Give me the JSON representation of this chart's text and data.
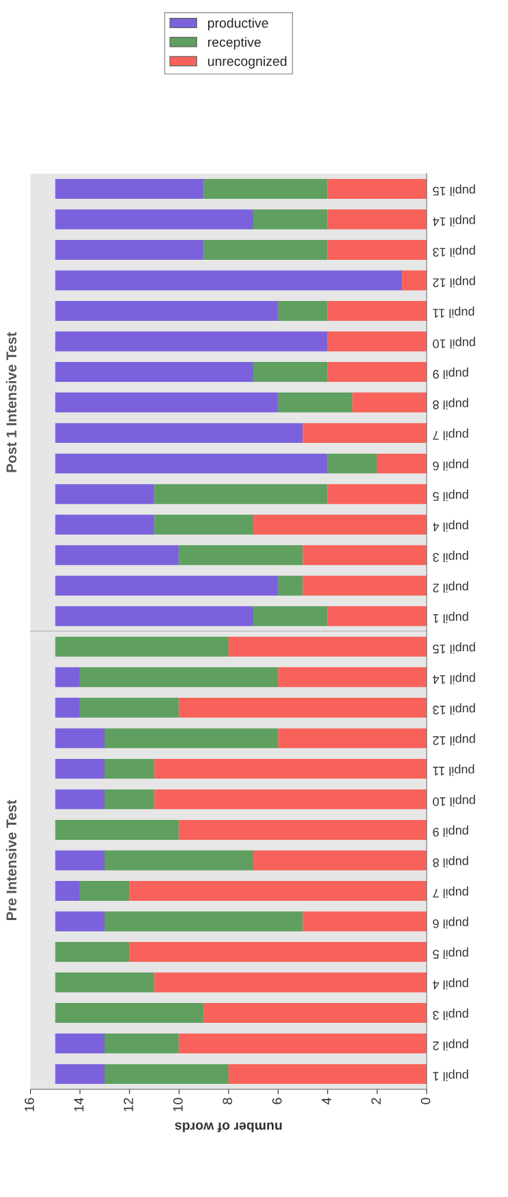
{
  "chart_data": [
    {
      "type": "bar",
      "title": "Post 1 Intensive Test",
      "orientation": "horizontal",
      "stacked": true,
      "legend": "top",
      "grid": false,
      "tick_labels": "y",
      "categories": [
        "pupil 15",
        "pupil 14",
        "pupil 13",
        "pupil 12",
        "pupil 11",
        "pupil 10",
        "pupil 9",
        "pupil 8",
        "pupil 7",
        "pupil 6",
        "pupil 5",
        "pupil 4",
        "pupil 3",
        "pupil 2",
        "pupil 1"
      ],
      "xlim": [
        16,
        0
      ],
      "xticks": [
        0,
        2,
        4,
        6,
        8,
        10,
        12,
        14,
        16
      ],
      "series": [
        {
          "name": "unrecognized",
          "color": "#f8625a",
          "values": [
            4,
            4,
            4,
            1,
            4,
            4,
            4,
            3,
            5,
            2,
            4,
            7,
            5,
            5,
            4
          ]
        },
        {
          "name": "receptive",
          "color": "#5f9f5f",
          "values": [
            5,
            3,
            5,
            0,
            2,
            0,
            3,
            3,
            0,
            2,
            7,
            4,
            5,
            1,
            3
          ]
        },
        {
          "name": "productive",
          "color": "#7b62dc",
          "values": [
            6,
            8,
            6,
            14,
            9,
            11,
            8,
            9,
            10,
            11,
            4,
            4,
            5,
            9,
            8
          ]
        }
      ]
    },
    {
      "type": "bar",
      "title": "Pre Intensive Test",
      "orientation": "horizontal",
      "stacked": true,
      "grid": false,
      "xlabel": "number of words",
      "categories": [
        "pupil 15",
        "pupil 14",
        "pupil 13",
        "pupil 12",
        "pupil 11",
        "pupil 10",
        "pupil 9",
        "pupil 8",
        "pupil 7",
        "pupil 6",
        "pupil 5",
        "pupil 4",
        "pupil 3",
        "pupil 2",
        "pupil 1"
      ],
      "xlim": [
        16,
        0
      ],
      "xticks": [
        0,
        2,
        4,
        6,
        8,
        10,
        12,
        14,
        16
      ],
      "series": [
        {
          "name": "unrecognized",
          "color": "#f8625a",
          "values": [
            8,
            6,
            10,
            6,
            11,
            11,
            10,
            7,
            12,
            5,
            12,
            11,
            9,
            10,
            8
          ]
        },
        {
          "name": "receptive",
          "color": "#5f9f5f",
          "values": [
            7,
            8,
            4,
            7,
            2,
            2,
            5,
            6,
            2,
            8,
            3,
            4,
            6,
            3,
            5
          ]
        },
        {
          "name": "productive",
          "color": "#7b62dc",
          "values": [
            0,
            1,
            1,
            2,
            2,
            2,
            0,
            2,
            1,
            2,
            0,
            0,
            0,
            2,
            2
          ]
        }
      ]
    }
  ]
}
